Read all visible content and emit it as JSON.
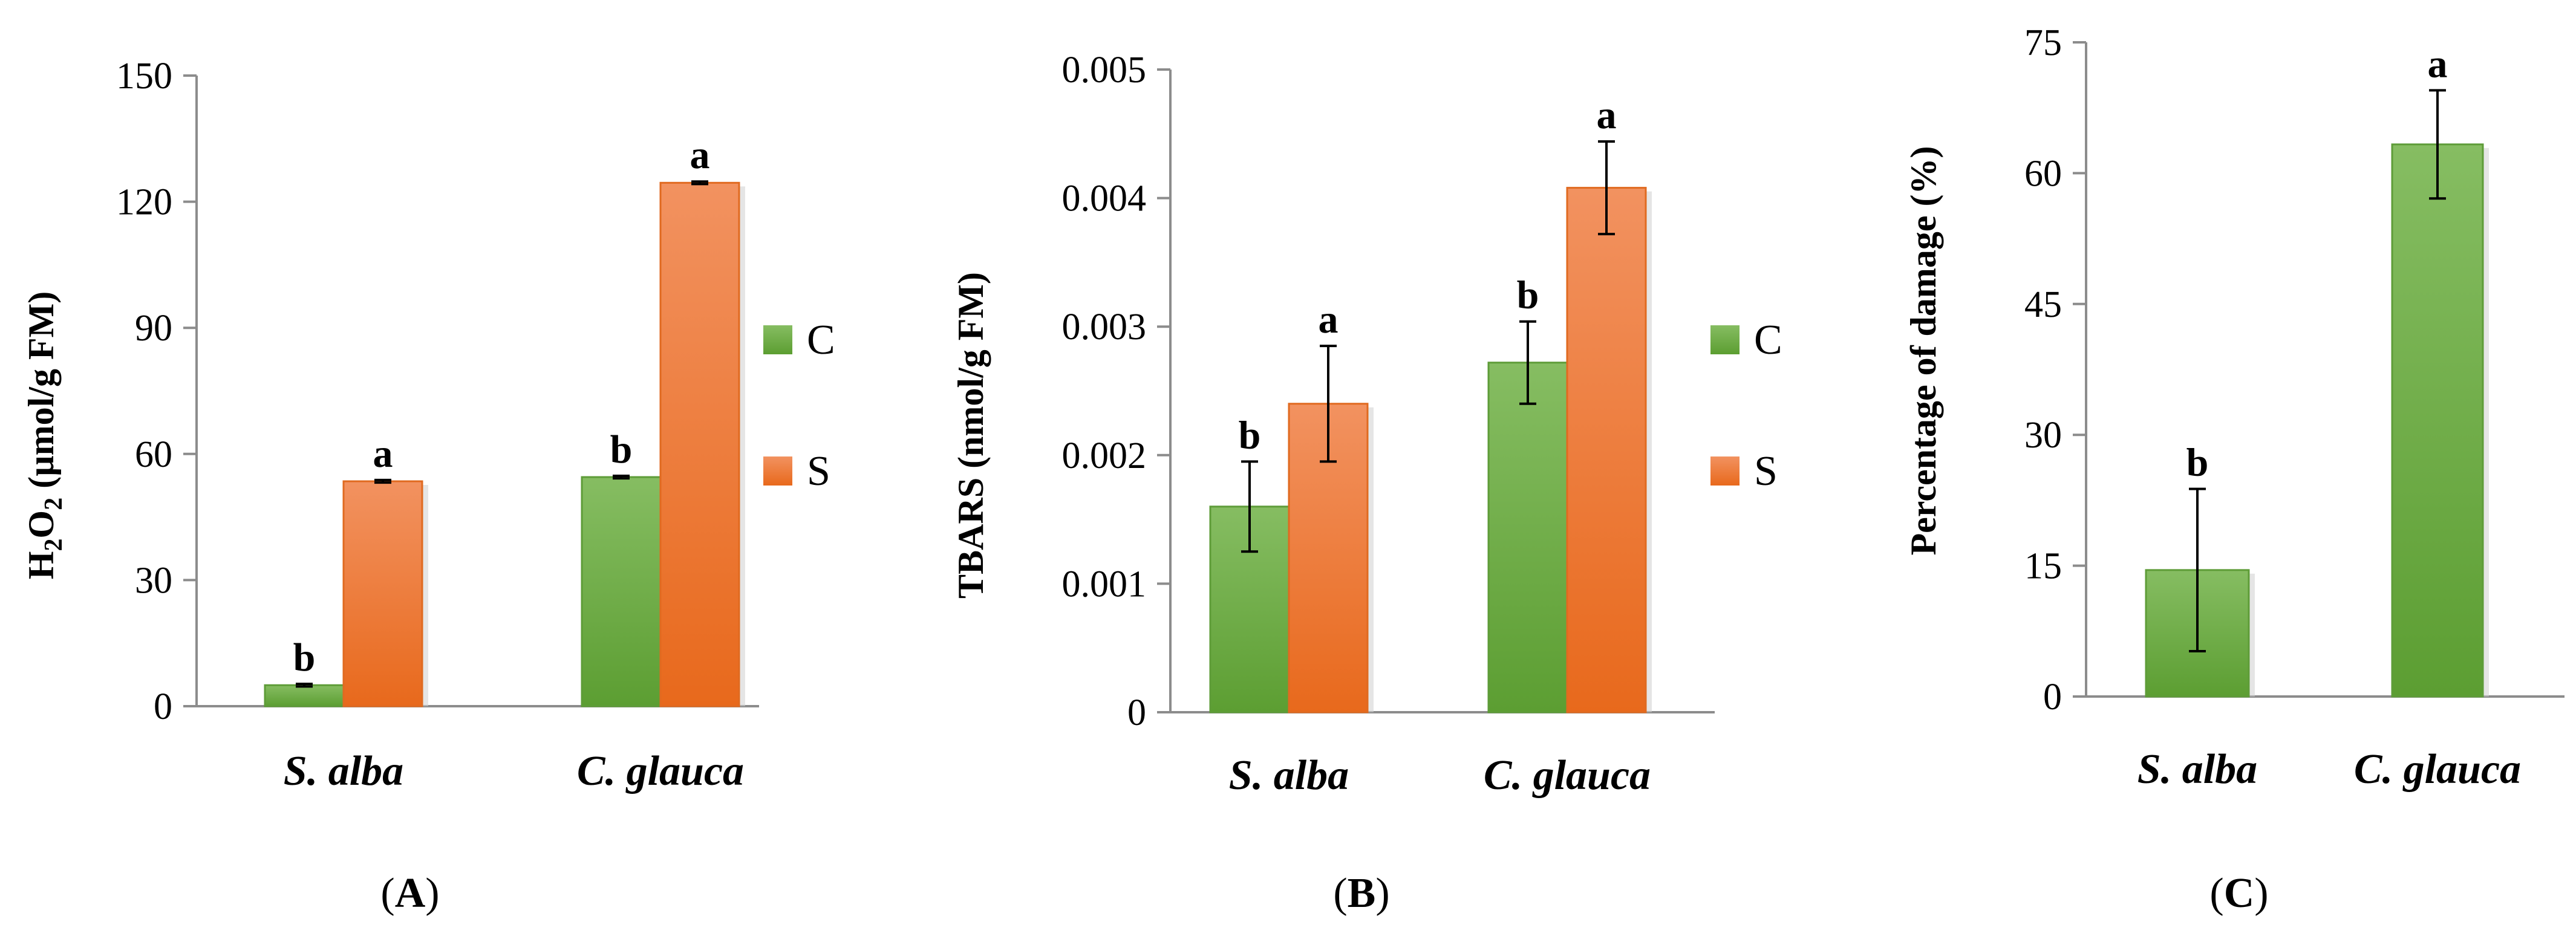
{
  "colors": {
    "control": "#6aaa42",
    "salt": "#ef7b32",
    "axis": "#8c8c8c"
  },
  "chart_data": [
    {
      "type": "bar",
      "panel": "A",
      "categories": [
        "S. alba",
        "C. glauca"
      ],
      "series": [
        {
          "name": "C",
          "values": [
            5,
            54.5
          ],
          "errors": [
            0.3,
            0.3
          ]
        },
        {
          "name": "S",
          "values": [
            53.5,
            124.5
          ],
          "errors": [
            0.3,
            0.3
          ]
        }
      ],
      "significance": [
        [
          "b",
          "a"
        ],
        [
          "b",
          "a"
        ]
      ],
      "ylabel": "H2O2 (µmol/g FM)",
      "ylim": [
        0,
        150
      ],
      "yticks": [
        "0",
        "30",
        "60",
        "90",
        "120",
        "150"
      ],
      "legend": [
        "C",
        "S"
      ],
      "legend_position": "right",
      "panel_label": "A"
    },
    {
      "type": "bar",
      "panel": "B",
      "categories": [
        "S. alba",
        "C. glauca"
      ],
      "series": [
        {
          "name": "C",
          "values": [
            0.0016,
            0.00272
          ],
          "errors": [
            0.00035,
            0.00032
          ]
        },
        {
          "name": "S",
          "values": [
            0.0024,
            0.00408
          ],
          "errors": [
            0.00045,
            0.00036
          ]
        }
      ],
      "significance": [
        [
          "b",
          "a"
        ],
        [
          "b",
          "a"
        ]
      ],
      "ylabel": "TBARS (nmol/g FM)",
      "ylim": [
        0,
        0.005
      ],
      "yticks": [
        "0",
        "0.001",
        "0.002",
        "0.003",
        "0.004",
        "0.005"
      ],
      "legend": [
        "C",
        "S"
      ],
      "legend_position": "right",
      "panel_label": "B"
    },
    {
      "type": "bar",
      "panel": "C",
      "categories": [
        "S. alba",
        "C. glauca"
      ],
      "series": [
        {
          "name": "damage",
          "values": [
            14.5,
            63.3
          ],
          "errors": [
            9.3,
            6.2
          ]
        }
      ],
      "significance": [
        [
          "b"
        ],
        [
          "a"
        ]
      ],
      "ylabel": "Percentage of damage (%)",
      "ylim": [
        0,
        75
      ],
      "yticks": [
        "0",
        "15",
        "30",
        "45",
        "60",
        "75"
      ],
      "panel_label": "C"
    }
  ]
}
